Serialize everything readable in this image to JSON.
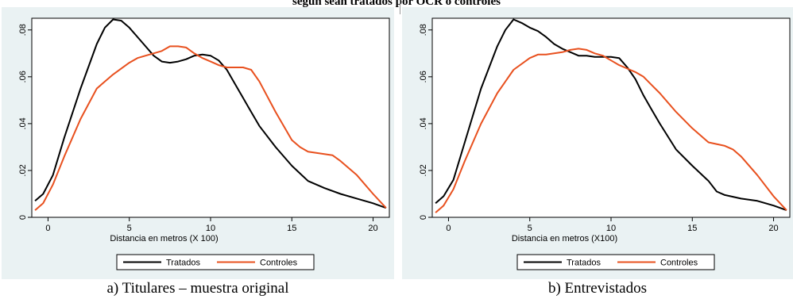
{
  "figure": {
    "title": "según sean tratados por OCR o controles",
    "captions": [
      "a) Titulares – muestra original",
      "b) Entrevistados"
    ]
  },
  "colors": {
    "panel_bg": "#eaf2f3",
    "tratados": "#000000",
    "controles": "#e8501e"
  },
  "chart_data": [
    {
      "type": "line",
      "title": "",
      "xlabel": "Distancia en metros (X 100)",
      "ylabel": "",
      "xlim": [
        -1,
        21
      ],
      "ylim": [
        0,
        0.085
      ],
      "xticks": [
        "0",
        "5",
        "10",
        "15",
        "20"
      ],
      "yticks": [
        "0",
        ".02",
        ".04",
        ".06",
        ".08"
      ],
      "legend": "bottom",
      "grid": false,
      "series": [
        {
          "name": "Tratados",
          "x": [
            -0.8,
            -0.3,
            0.3,
            1,
            2,
            3,
            3.5,
            4,
            4.5,
            5,
            5.5,
            6,
            6.5,
            7,
            7.5,
            8,
            8.5,
            9,
            9.5,
            10,
            10.5,
            11,
            11.5,
            12,
            12.5,
            13,
            14,
            15,
            16,
            17,
            18,
            19,
            20,
            20.8
          ],
          "y": [
            0.007,
            0.01,
            0.018,
            0.034,
            0.055,
            0.074,
            0.081,
            0.0845,
            0.084,
            0.081,
            0.077,
            0.073,
            0.069,
            0.0665,
            0.066,
            0.0665,
            0.0675,
            0.069,
            0.0695,
            0.069,
            0.067,
            0.063,
            0.057,
            0.051,
            0.045,
            0.039,
            0.03,
            0.022,
            0.0155,
            0.0125,
            0.01,
            0.008,
            0.006,
            0.004
          ]
        },
        {
          "name": "Controles",
          "x": [
            -0.8,
            -0.3,
            0.3,
            1,
            2,
            3,
            4,
            5,
            5.5,
            6,
            7,
            7.5,
            8,
            8.5,
            9,
            9.5,
            10,
            10.5,
            11,
            11.5,
            12,
            12.5,
            13,
            14,
            15,
            15.5,
            16,
            17,
            17.5,
            18,
            19,
            20,
            20.8
          ],
          "y": [
            0.003,
            0.006,
            0.014,
            0.026,
            0.042,
            0.055,
            0.061,
            0.066,
            0.068,
            0.069,
            0.071,
            0.073,
            0.073,
            0.0725,
            0.07,
            0.068,
            0.0665,
            0.065,
            0.064,
            0.064,
            0.064,
            0.063,
            0.058,
            0.045,
            0.033,
            0.03,
            0.028,
            0.027,
            0.0265,
            0.024,
            0.018,
            0.01,
            0.004
          ]
        }
      ]
    },
    {
      "type": "line",
      "title": "",
      "xlabel": "Distancia en metros (X100)",
      "ylabel": "",
      "xlim": [
        -1,
        21
      ],
      "ylim": [
        0,
        0.085
      ],
      "xticks": [
        "0",
        "5",
        "10",
        "15",
        "20"
      ],
      "yticks": [
        "0",
        ".02",
        ".04",
        ".06",
        ".08"
      ],
      "legend": "bottom",
      "grid": false,
      "series": [
        {
          "name": "Tratados",
          "x": [
            -0.8,
            -0.3,
            0.3,
            1,
            2,
            3,
            3.5,
            4,
            4.5,
            5,
            5.5,
            6,
            6.5,
            7,
            7.5,
            8,
            8.5,
            9,
            9.5,
            10,
            10.5,
            11,
            11.5,
            12,
            12.5,
            13,
            14,
            15,
            16,
            16.5,
            17,
            18,
            19,
            20,
            20.8
          ],
          "y": [
            0.006,
            0.009,
            0.016,
            0.032,
            0.055,
            0.073,
            0.08,
            0.0845,
            0.083,
            0.081,
            0.0795,
            0.077,
            0.074,
            0.072,
            0.0705,
            0.069,
            0.069,
            0.0685,
            0.0685,
            0.0685,
            0.068,
            0.064,
            0.059,
            0.052,
            0.046,
            0.04,
            0.029,
            0.022,
            0.0155,
            0.011,
            0.0095,
            0.008,
            0.007,
            0.005,
            0.003
          ]
        },
        {
          "name": "Controles",
          "x": [
            -0.8,
            -0.3,
            0.3,
            1,
            2,
            3,
            4,
            5,
            5.5,
            6,
            7,
            7.5,
            8,
            8.5,
            9,
            9.5,
            10,
            10.5,
            11,
            11.5,
            12,
            12.5,
            13,
            14,
            15,
            15.5,
            16,
            17,
            17.5,
            18,
            19,
            20,
            20.8
          ],
          "y": [
            0.002,
            0.005,
            0.012,
            0.024,
            0.04,
            0.053,
            0.063,
            0.068,
            0.0695,
            0.0695,
            0.0705,
            0.0715,
            0.072,
            0.0715,
            0.07,
            0.069,
            0.067,
            0.065,
            0.0635,
            0.062,
            0.06,
            0.0565,
            0.053,
            0.045,
            0.038,
            0.035,
            0.032,
            0.0305,
            0.029,
            0.026,
            0.018,
            0.009,
            0.003
          ]
        }
      ]
    }
  ]
}
